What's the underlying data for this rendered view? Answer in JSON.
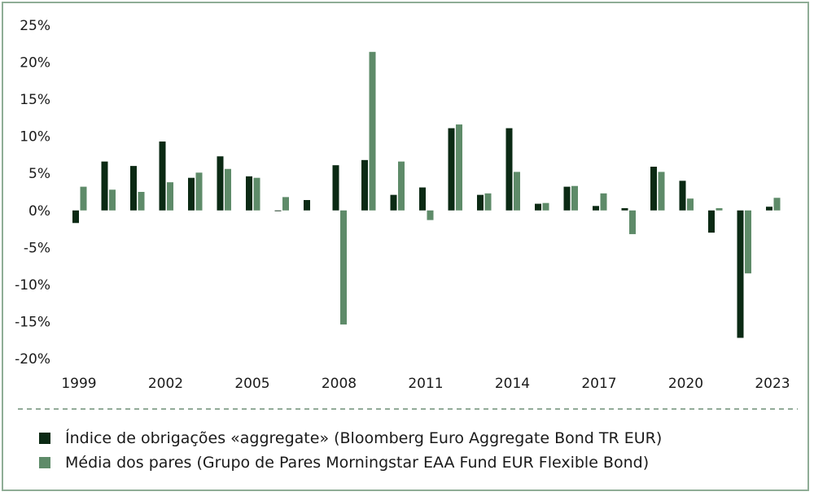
{
  "chart_data": {
    "type": "bar",
    "categories": [
      "1999",
      "2000",
      "2001",
      "2002",
      "2003",
      "2004",
      "2005",
      "2006",
      "2007",
      "2008",
      "2009",
      "2010",
      "2011",
      "2012",
      "2013",
      "2014",
      "2015",
      "2016",
      "2017",
      "2018",
      "2019",
      "2020",
      "2021",
      "2022",
      "2023"
    ],
    "x_tick_labels": [
      "1999",
      "2002",
      "2005",
      "2008",
      "2011",
      "2014",
      "2017",
      "2020",
      "2023"
    ],
    "y_tick_values": [
      25,
      20,
      15,
      10,
      5,
      0,
      -5,
      -10,
      -15,
      -20
    ],
    "y_tick_labels": [
      "25%",
      "20%",
      "15%",
      "10%",
      "5%",
      "0%",
      "-5%",
      "-10%",
      "-15%",
      "-20%"
    ],
    "ylim": [
      -20,
      25
    ],
    "series": [
      {
        "name": "Índice de obrigações «aggregate» (Bloomberg Euro Aggregate Bond TR EUR)",
        "color": "#0b2a14",
        "values": [
          -1.7,
          6.6,
          6.0,
          9.3,
          4.4,
          7.3,
          4.6,
          -0.1,
          1.4,
          6.1,
          6.8,
          2.1,
          3.1,
          11.1,
          2.1,
          11.1,
          0.9,
          3.2,
          0.6,
          0.3,
          5.9,
          4.0,
          -3.0,
          -17.2,
          0.5
        ]
      },
      {
        "name": "Média dos pares (Grupo de Pares Morningstar EAA Fund EUR Flexible Bond)",
        "color": "#5e8b69",
        "values": [
          3.2,
          2.8,
          2.5,
          3.8,
          5.1,
          5.6,
          4.4,
          1.8,
          0.0,
          -15.4,
          21.4,
          6.6,
          -1.3,
          11.6,
          2.3,
          5.2,
          1.0,
          3.3,
          2.3,
          -3.2,
          5.2,
          1.6,
          0.3,
          -8.5,
          1.7
        ]
      }
    ],
    "title": "",
    "xlabel": "",
    "ylabel": "",
    "grid": false,
    "legend_position": "bottom"
  }
}
